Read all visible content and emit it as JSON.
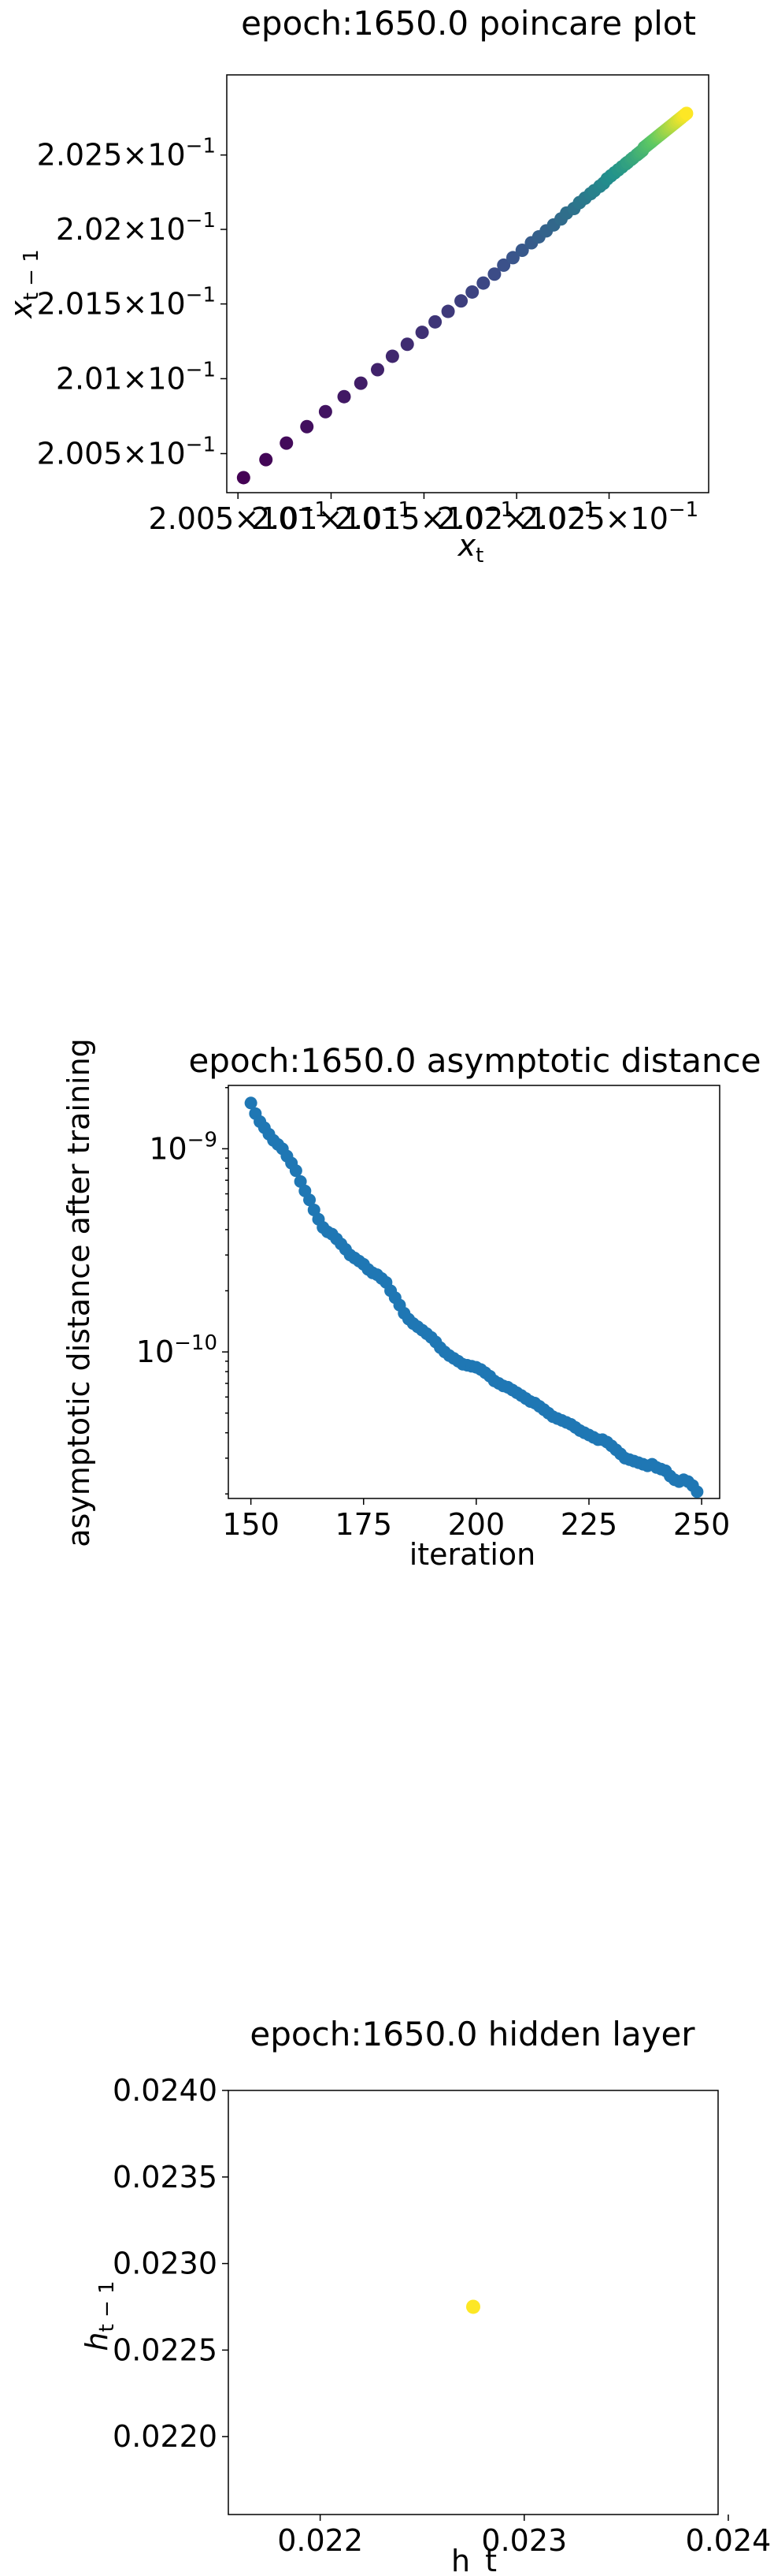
{
  "chart_data": [
    {
      "type": "scatter",
      "title": "epoch:1650.0 poincare plot",
      "xlabel": "x_t",
      "ylabel": "x_{t-1}",
      "xscale": "log",
      "yscale": "log",
      "xlim": [
        0.20044,
        0.20304
      ],
      "ylim": [
        0.20024,
        0.20304
      ],
      "x_ticks": [
        {
          "value": 0.2005,
          "mant": "2.005",
          "exp": "−1"
        },
        {
          "value": 0.201,
          "mant": "2.01",
          "exp": "−1"
        },
        {
          "value": 0.2015,
          "mant": "2.015",
          "exp": "−1"
        },
        {
          "value": 0.202,
          "mant": "2.02",
          "exp": "−1"
        },
        {
          "value": 0.2025,
          "mant": "2.025",
          "exp": "−1"
        }
      ],
      "y_ticks": [
        {
          "value": 0.2005,
          "mant": "2.005",
          "exp": "−1"
        },
        {
          "value": 0.201,
          "mant": "2.01",
          "exp": "−1"
        },
        {
          "value": 0.2015,
          "mant": "2.015",
          "exp": "−1"
        },
        {
          "value": 0.202,
          "mant": "2.02",
          "exp": "−1"
        },
        {
          "value": 0.2025,
          "mant": "2.025",
          "exp": "−1"
        }
      ],
      "colormap": "viridis",
      "points": [
        [
          0.20053,
          0.20034
        ],
        [
          0.20065,
          0.20046
        ],
        [
          0.20076,
          0.20057
        ],
        [
          0.20087,
          0.20068
        ],
        [
          0.20097,
          0.20078
        ],
        [
          0.20107,
          0.20088
        ],
        [
          0.20116,
          0.20097
        ],
        [
          0.20125,
          0.20106
        ],
        [
          0.20133,
          0.20115
        ],
        [
          0.20141,
          0.20123
        ],
        [
          0.20149,
          0.20131
        ],
        [
          0.20156,
          0.20138
        ],
        [
          0.20163,
          0.20145
        ],
        [
          0.2017,
          0.20152
        ],
        [
          0.20176,
          0.20158
        ],
        [
          0.20182,
          0.20164
        ],
        [
          0.20188,
          0.2017
        ],
        [
          0.20193,
          0.20176
        ],
        [
          0.20198,
          0.20181
        ],
        [
          0.20203,
          0.20186
        ],
        [
          0.20208,
          0.20191
        ],
        [
          0.20212,
          0.20195
        ],
        [
          0.20216,
          0.20199
        ],
        [
          0.2022,
          0.20203
        ],
        [
          0.20224,
          0.20207
        ],
        [
          0.20227,
          0.20211
        ],
        [
          0.20231,
          0.20214
        ],
        [
          0.20234,
          0.20218
        ],
        [
          0.20237,
          0.20221
        ],
        [
          0.2024,
          0.20224
        ],
        [
          0.20242,
          0.20226
        ],
        [
          0.20245,
          0.20229
        ],
        [
          0.20247,
          0.20231
        ],
        [
          0.20249,
          0.20234
        ],
        [
          0.20251,
          0.20236
        ],
        [
          0.20253,
          0.20238
        ],
        [
          0.20255,
          0.2024
        ],
        [
          0.20257,
          0.20242
        ],
        [
          0.20259,
          0.20244
        ],
        [
          0.2026,
          0.20245
        ],
        [
          0.20262,
          0.20247
        ],
        [
          0.20263,
          0.20248
        ],
        [
          0.20265,
          0.2025
        ],
        [
          0.20266,
          0.20251
        ],
        [
          0.20267,
          0.20252
        ],
        [
          0.20268,
          0.20253
        ],
        [
          0.20269,
          0.20255
        ],
        [
          0.2027,
          0.20256
        ],
        [
          0.20271,
          0.20257
        ],
        [
          0.20272,
          0.20258
        ],
        [
          0.20273,
          0.20259
        ],
        [
          0.20274,
          0.2026
        ],
        [
          0.20275,
          0.20261
        ],
        [
          0.20276,
          0.20262
        ],
        [
          0.20277,
          0.20263
        ],
        [
          0.20278,
          0.20264
        ],
        [
          0.20279,
          0.20265
        ],
        [
          0.2028,
          0.20266
        ],
        [
          0.20281,
          0.20267
        ],
        [
          0.20282,
          0.20268
        ],
        [
          0.20283,
          0.20269
        ],
        [
          0.20284,
          0.2027
        ],
        [
          0.20285,
          0.20271
        ],
        [
          0.20286,
          0.20272
        ],
        [
          0.20287,
          0.20273
        ],
        [
          0.20288,
          0.20274
        ],
        [
          0.20289,
          0.20275
        ],
        [
          0.2029,
          0.20276
        ],
        [
          0.20291,
          0.20277
        ],
        [
          0.20292,
          0.20278
        ]
      ]
    },
    {
      "type": "scatter",
      "title": "epoch:1650.0 asymptotic distance",
      "xlabel": "iteration",
      "ylabel": "asymptotic distance after training",
      "yscale": "log",
      "xlim": [
        145,
        254
      ],
      "ylim": [
        1.9e-11,
        2.05e-09
      ],
      "x_ticks": [
        150,
        175,
        200,
        225,
        250
      ],
      "y_ticks": [
        {
          "value": 1e-09,
          "exp": "−9"
        },
        {
          "value": 1e-10,
          "exp": "−10"
        }
      ],
      "color": "#1f77b4",
      "x": [
        150,
        151,
        152,
        153,
        154,
        155,
        156,
        157,
        158,
        159,
        160,
        161,
        162,
        163,
        164,
        165,
        166,
        167,
        168,
        169,
        170,
        171,
        172,
        173,
        174,
        175,
        176,
        177,
        178,
        179,
        180,
        181,
        182,
        183,
        184,
        185,
        186,
        187,
        188,
        189,
        190,
        191,
        192,
        193,
        194,
        195,
        196,
        197,
        198,
        199,
        200,
        201,
        202,
        203,
        204,
        205,
        206,
        207,
        208,
        209,
        210,
        211,
        212,
        213,
        214,
        215,
        216,
        217,
        218,
        219,
        220,
        221,
        222,
        223,
        224,
        225,
        226,
        227,
        228,
        229,
        230,
        231,
        232,
        233,
        234,
        235,
        236,
        237,
        238,
        239,
        240,
        241,
        242,
        243,
        244,
        245,
        246,
        247,
        248,
        249
      ],
      "y": [
        1.68e-09,
        1.49e-09,
        1.36e-09,
        1.27e-09,
        1.18e-09,
        1.1e-09,
        1.05e-09,
        1e-09,
        9.2e-10,
        8.5e-10,
        7.8e-10,
        6.9e-10,
        6.2e-10,
        5.6e-10,
        5e-10,
        4.5e-10,
        4.1e-10,
        3.9e-10,
        3.8e-10,
        3.6e-10,
        3.4e-10,
        3.2e-10,
        3e-10,
        2.9e-10,
        2.8e-10,
        2.7e-10,
        2.55e-10,
        2.45e-10,
        2.4e-10,
        2.3e-10,
        2.2e-10,
        2e-10,
        1.85e-10,
        1.7e-10,
        1.55e-10,
        1.45e-10,
        1.38e-10,
        1.33e-10,
        1.28e-10,
        1.23e-10,
        1.18e-10,
        1.12e-10,
        1.05e-10,
        1e-10,
        9.6e-11,
        9.3e-11,
        9e-11,
        8.7e-11,
        8.6e-11,
        8.5e-11,
        8.4e-11,
        8.2e-11,
        7.9e-11,
        7.6e-11,
        7.2e-11,
        7e-11,
        6.8e-11,
        6.7e-11,
        6.5e-11,
        6.3e-11,
        6.1e-11,
        5.9e-11,
        5.7e-11,
        5.6e-11,
        5.4e-11,
        5.2e-11,
        5e-11,
        4.8e-11,
        4.7e-11,
        4.6e-11,
        4.5e-11,
        4.4e-11,
        4.25e-11,
        4.1e-11,
        4e-11,
        3.9e-11,
        3.8e-11,
        3.7e-11,
        3.7e-11,
        3.6e-11,
        3.45e-11,
        3.3e-11,
        3.15e-11,
        3e-11,
        2.95e-11,
        2.9e-11,
        2.85e-11,
        2.8e-11,
        2.75e-11,
        2.8e-11,
        2.7e-11,
        2.65e-11,
        2.6e-11,
        2.45e-11,
        2.35e-11,
        2.3e-11,
        2.35e-11,
        2.3e-11,
        2.2e-11,
        2.05e-11
      ]
    },
    {
      "type": "scatter",
      "title": "epoch:1650.0 hidden layer",
      "xlabel": "h_t",
      "ylabel": "h_{t-1}",
      "xlim": [
        0.02155,
        0.02395
      ],
      "ylim": [
        0.02155,
        0.024
      ],
      "x_ticks": [
        {
          "value": 0.022,
          "label": "0.022"
        },
        {
          "value": 0.023,
          "label": "0.023"
        },
        {
          "value": 0.024,
          "label": "0.024"
        }
      ],
      "y_ticks": [
        {
          "value": 0.022,
          "label": "0.0220"
        },
        {
          "value": 0.0225,
          "label": "0.0225"
        },
        {
          "value": 0.023,
          "label": "0.0230"
        },
        {
          "value": 0.0235,
          "label": "0.0235"
        },
        {
          "value": 0.024,
          "label": "0.0240"
        }
      ],
      "color": "#fde725",
      "points": [
        [
          0.02275,
          0.02275
        ]
      ]
    }
  ]
}
